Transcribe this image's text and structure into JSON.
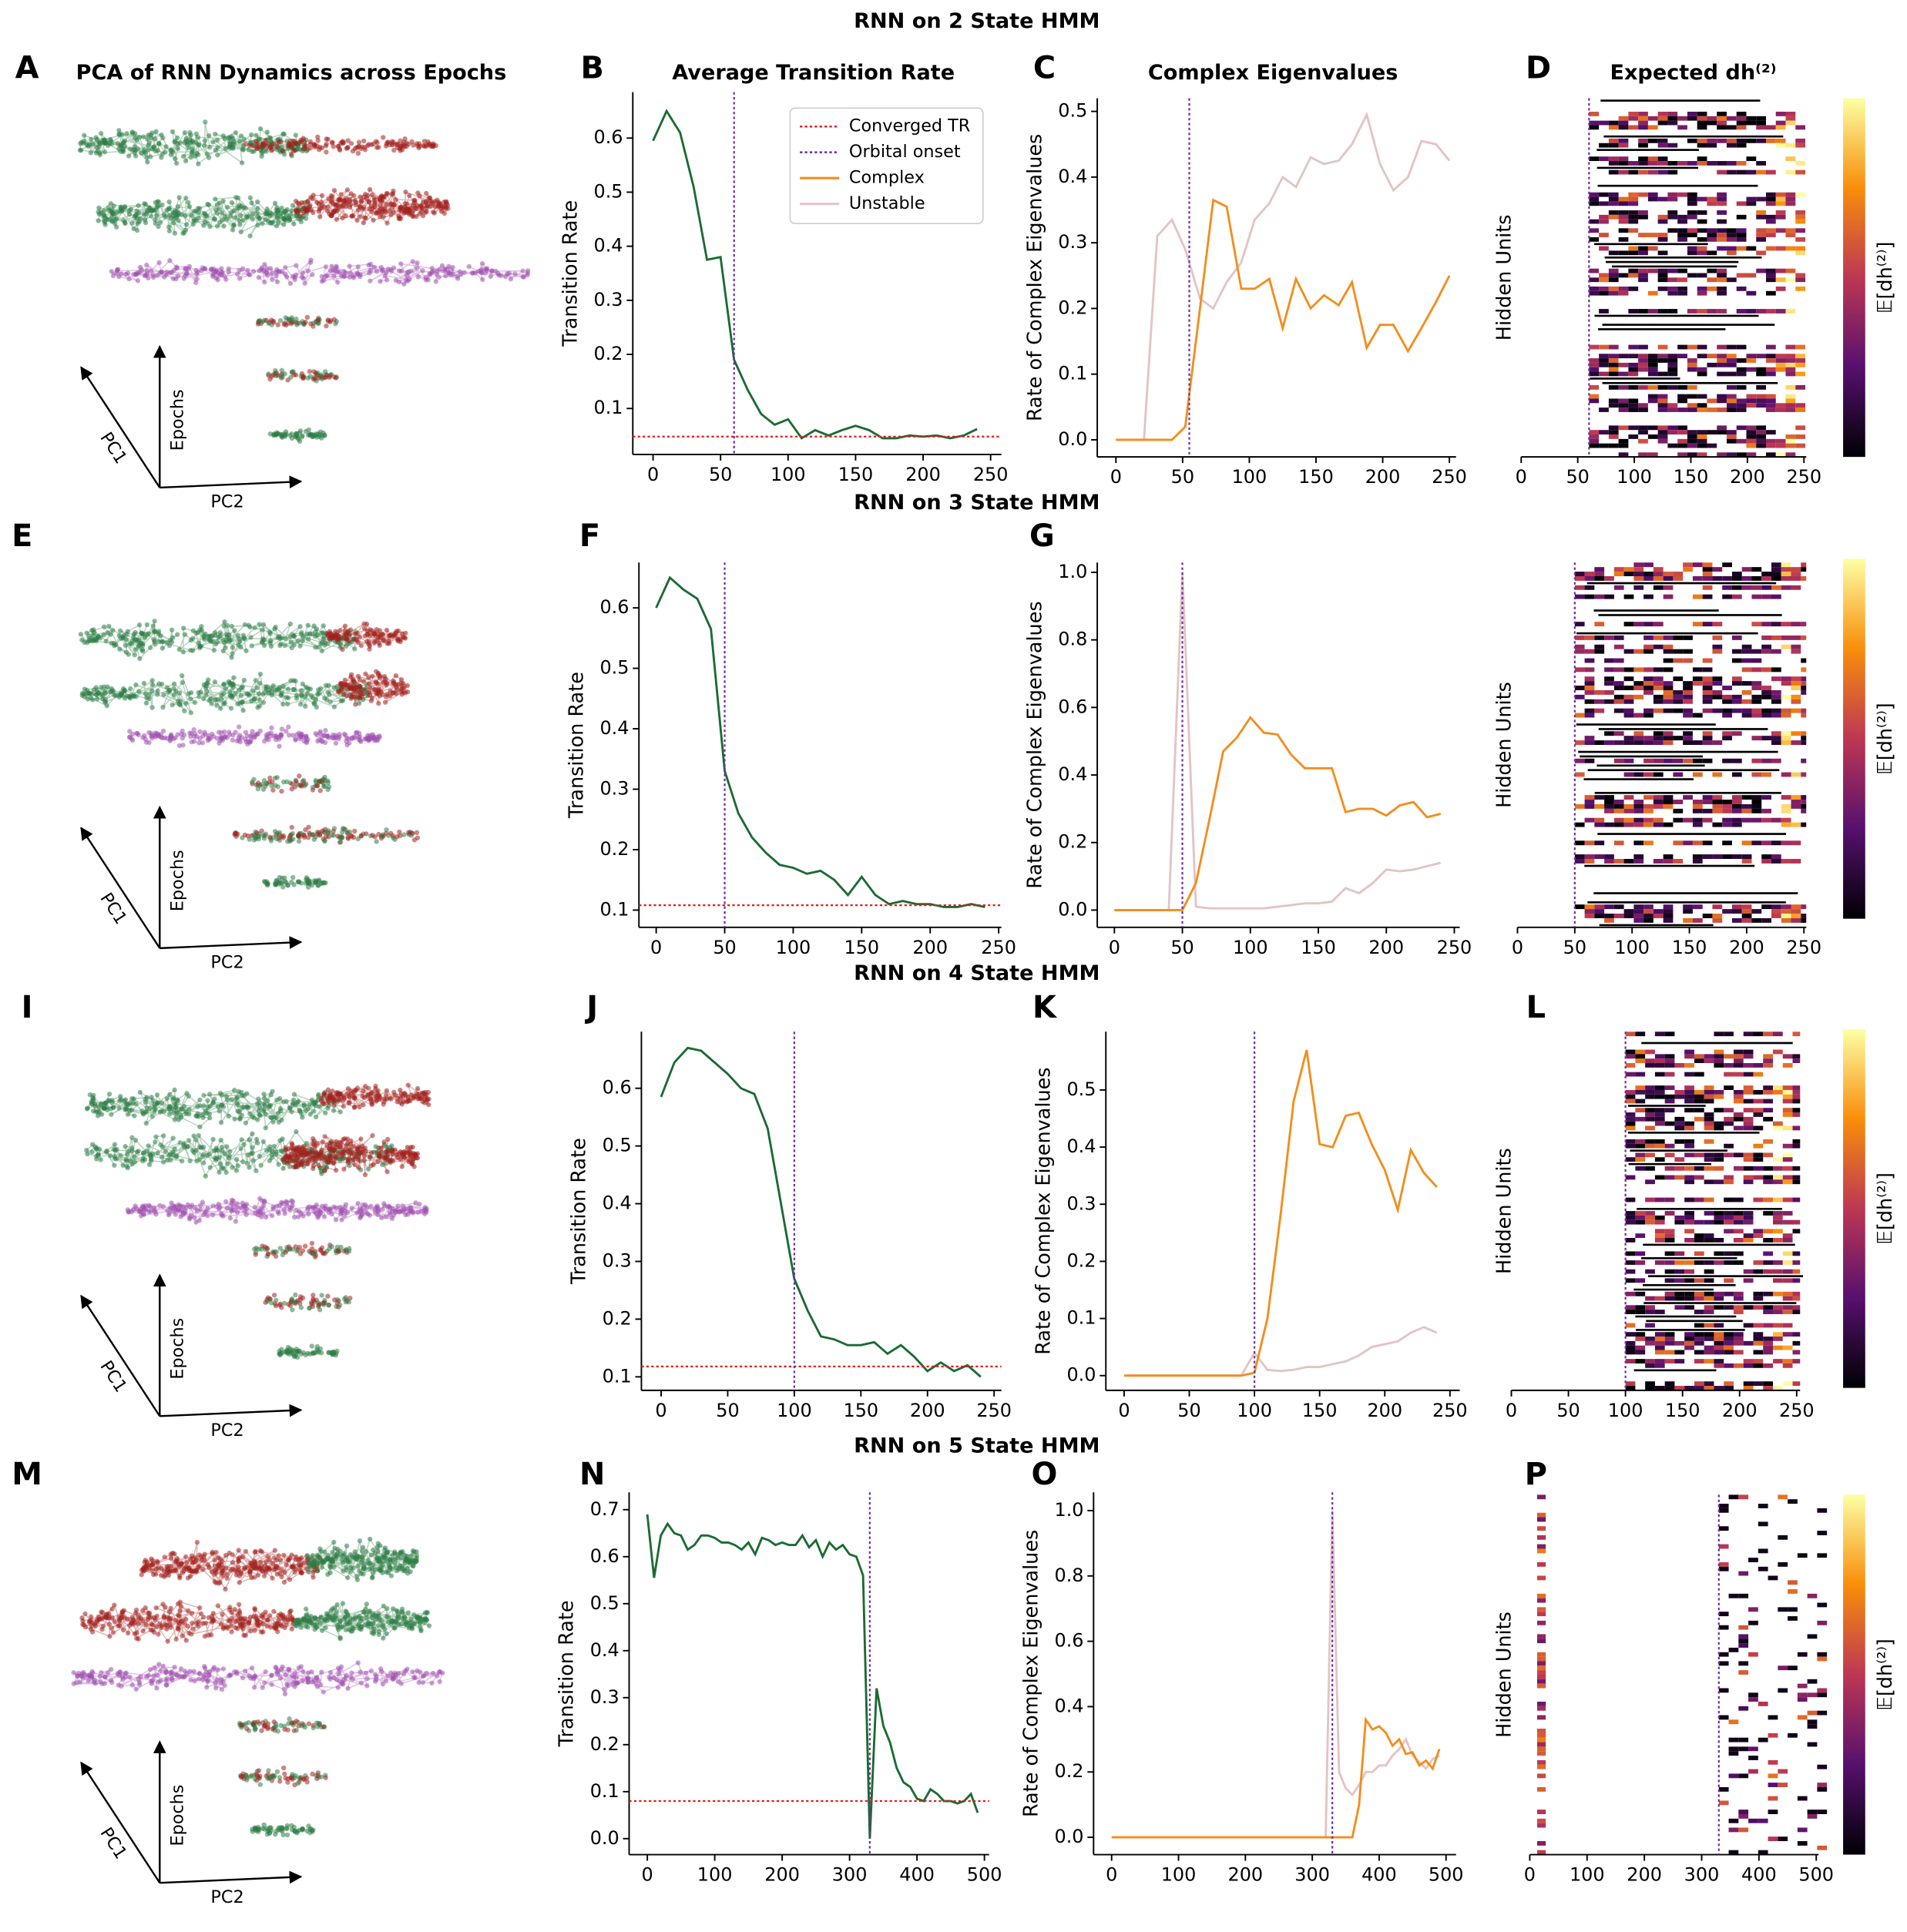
{
  "row_titles": [
    "RNN on 2 State HMM",
    "RNN on 3 State HMM",
    "RNN on 4 State HMM",
    "RNN on 5 State HMM"
  ],
  "chart_data": [
    {
      "type": "pca",
      "label": "A",
      "title": "PCA of RNN Dynamics across Epochs",
      "axis_labels": [
        "PC1",
        "Epochs",
        "PC2"
      ]
    },
    {
      "type": "line",
      "label": "B",
      "title": "Average Transition Rate",
      "ylabel": "Transition Rate",
      "xlim": [
        -15,
        258
      ],
      "ylim": [
        0.015,
        0.685
      ],
      "xticks": [
        0,
        50,
        100,
        150,
        200,
        250
      ],
      "yticks": [
        0.1,
        0.2,
        0.3,
        0.4,
        0.5,
        0.6
      ],
      "x": [
        0,
        10,
        20,
        30,
        40,
        50,
        60,
        70,
        80,
        90,
        100,
        110,
        120,
        130,
        140,
        150,
        160,
        170,
        180,
        190,
        200,
        210,
        220,
        230,
        240
      ],
      "series": [
        {
          "color": "#1b6b32",
          "values": [
            0.595,
            0.65,
            0.61,
            0.51,
            0.375,
            0.38,
            0.19,
            0.135,
            0.09,
            0.07,
            0.08,
            0.045,
            0.06,
            0.05,
            0.06,
            0.068,
            0.06,
            0.045,
            0.045,
            0.05,
            0.048,
            0.05,
            0.045,
            0.05,
            0.062
          ]
        }
      ],
      "hline": {
        "value": 0.048,
        "color": "#e8191c"
      },
      "vline": {
        "value": 60,
        "color": "#7030a0"
      },
      "legend": [
        {
          "name": "Converged TR",
          "color": "#e8191c",
          "style": "dotted"
        },
        {
          "name": "Orbital onset",
          "color": "#7030a0",
          "style": "dotted"
        },
        {
          "name": "Complex",
          "color": "#f28e1c",
          "style": "solid"
        },
        {
          "name": "Unstable",
          "color": "#e3c3c6",
          "style": "solid"
        }
      ]
    },
    {
      "type": "line",
      "label": "C",
      "title": "Complex Eigenvalues",
      "ylabel": "Rate of Complex Eigenvalues",
      "xlim": [
        -14,
        255
      ],
      "ylim": [
        -0.026,
        0.52
      ],
      "xticks": [
        0,
        50,
        100,
        150,
        200,
        250
      ],
      "yticks": [
        {
          "value": 0,
          "label": "0.0"
        },
        0.1,
        0.2,
        0.3,
        0.4,
        0.5
      ],
      "x": [
        0,
        10,
        21,
        31,
        42,
        52,
        63,
        73,
        83,
        94,
        104,
        115,
        125,
        135,
        146,
        156,
        167,
        177,
        188,
        198,
        208,
        219,
        229,
        240,
        250
      ],
      "series": [
        {
          "color": "#e3c3c6",
          "values": [
            0,
            0,
            0,
            0.31,
            0.335,
            0.29,
            0.215,
            0.2,
            0.24,
            0.27,
            0.335,
            0.36,
            0.4,
            0.385,
            0.43,
            0.42,
            0.425,
            0.45,
            0.495,
            0.42,
            0.38,
            0.4,
            0.455,
            0.45,
            0.425
          ]
        },
        {
          "color": "#f28e1c",
          "values": [
            0,
            0,
            0,
            0,
            0,
            0.02,
            0.2,
            0.365,
            0.355,
            0.23,
            0.23,
            0.245,
            0.17,
            0.245,
            0.2,
            0.22,
            0.205,
            0.24,
            0.14,
            0.175,
            0.175,
            0.135,
            0.17,
            0.21,
            0.25
          ]
        }
      ],
      "vline": {
        "value": 55,
        "color": "#7030a0"
      }
    },
    {
      "type": "heatmap",
      "label": "D",
      "title": "Expected dh⁽²⁾",
      "ylabel": "Hidden Units",
      "colorbar_label": "𝔼[dh⁽²⁾]",
      "colormap": "inferno",
      "xlim": [
        0,
        252
      ],
      "xticks": [
        0,
        50,
        100,
        150,
        200,
        250
      ],
      "orbital_onset": 60,
      "onset_color": "#7030a0"
    },
    {
      "type": "pca",
      "label": "E",
      "axis_labels": [
        "PC1",
        "Epochs",
        "PC2"
      ]
    },
    {
      "type": "line",
      "label": "F",
      "ylabel": "Transition Rate",
      "xlim": [
        -12.6,
        252
      ],
      "ylim": [
        0.0715,
        0.675
      ],
      "xticks": [
        0,
        50,
        100,
        150,
        200,
        250
      ],
      "yticks": [
        0.1,
        0.2,
        0.3,
        0.4,
        0.5,
        0.6
      ],
      "x": [
        0,
        10,
        20,
        30,
        40,
        50,
        60,
        70,
        80,
        90,
        100,
        110,
        120,
        130,
        140,
        150,
        160,
        170,
        180,
        190,
        200,
        210,
        220,
        230,
        240
      ],
      "series": [
        {
          "color": "#1b6b32",
          "values": [
            0.6,
            0.65,
            0.63,
            0.615,
            0.565,
            0.33,
            0.26,
            0.22,
            0.195,
            0.175,
            0.17,
            0.16,
            0.165,
            0.15,
            0.125,
            0.155,
            0.125,
            0.11,
            0.115,
            0.11,
            0.11,
            0.105,
            0.105,
            0.11,
            0.105
          ]
        }
      ],
      "hline": {
        "value": 0.108,
        "color": "#e8191c"
      },
      "vline": {
        "value": 50,
        "color": "#7030a0"
      }
    },
    {
      "type": "line",
      "label": "G",
      "ylabel": "Rate of Complex Eigenvalues",
      "xlim": [
        -12.6,
        254
      ],
      "ylim": [
        -0.051,
        1.029
      ],
      "xticks": [
        0,
        50,
        100,
        150,
        200,
        250
      ],
      "yticks": [
        {
          "value": 0,
          "label": "0.0"
        },
        0.2,
        0.4,
        0.6,
        0.8,
        {
          "value": 1,
          "label": "1.0"
        }
      ],
      "x": [
        0,
        10,
        20,
        30,
        40,
        50,
        60,
        70,
        80,
        90,
        100,
        110,
        120,
        130,
        140,
        150,
        160,
        170,
        180,
        190,
        200,
        210,
        220,
        230,
        240
      ],
      "series": [
        {
          "color": "#e3c3c6",
          "values": [
            0,
            0,
            0,
            0,
            0,
            1.0,
            0.01,
            0.005,
            0.005,
            0.005,
            0.005,
            0.005,
            0.01,
            0.015,
            0.02,
            0.02,
            0.025,
            0.065,
            0.05,
            0.08,
            0.12,
            0.115,
            0.12,
            0.13,
            0.14
          ]
        },
        {
          "color": "#f28e1c",
          "values": [
            0,
            0,
            0,
            0,
            0,
            0,
            0.08,
            0.27,
            0.47,
            0.51,
            0.57,
            0.525,
            0.52,
            0.46,
            0.42,
            0.42,
            0.42,
            0.29,
            0.3,
            0.3,
            0.28,
            0.31,
            0.32,
            0.275,
            0.285
          ]
        }
      ],
      "vline": {
        "value": 50,
        "color": "#7030a0"
      }
    },
    {
      "type": "heatmap",
      "ylabel": "Hidden Units",
      "colorbar_label": "𝔼[dh⁽²⁾]",
      "colormap": "inferno",
      "xlim": [
        0,
        252
      ],
      "xticks": [
        0,
        50,
        100,
        150,
        200,
        250
      ],
      "orbital_onset": 50,
      "onset_color": "#7030a0"
    },
    {
      "type": "pca",
      "label": "I",
      "axis_labels": [
        "PC1",
        "Epochs",
        "PC2"
      ]
    },
    {
      "type": "line",
      "label": "J",
      "ylabel": "Transition Rate",
      "xlim": [
        -14.8,
        255.5
      ],
      "ylim": [
        0.0766,
        0.698
      ],
      "xticks": [
        0,
        50,
        100,
        150,
        200,
        250
      ],
      "yticks": [
        0.1,
        0.2,
        0.3,
        0.4,
        0.5,
        0.6
      ],
      "x": [
        0,
        10,
        20,
        30,
        40,
        50,
        60,
        70,
        80,
        90,
        100,
        110,
        120,
        130,
        140,
        150,
        160,
        170,
        180,
        190,
        200,
        210,
        220,
        230,
        240
      ],
      "series": [
        {
          "color": "#1b6b32",
          "values": [
            0.585,
            0.645,
            0.67,
            0.665,
            0.645,
            0.625,
            0.6,
            0.59,
            0.53,
            0.4,
            0.27,
            0.215,
            0.17,
            0.165,
            0.155,
            0.155,
            0.16,
            0.14,
            0.155,
            0.135,
            0.11,
            0.125,
            0.11,
            0.12,
            0.1
          ]
        }
      ],
      "hline": {
        "value": 0.118,
        "color": "#e8191c"
      },
      "vline": {
        "value": 100,
        "color": "#7030a0"
      }
    },
    {
      "type": "line",
      "label": "K",
      "ylabel": "Rate of Complex Eigenvalues",
      "xlim": [
        -14,
        257.5
      ],
      "ylim": [
        -0.0258,
        0.602
      ],
      "xticks": [
        0,
        50,
        100,
        150,
        200,
        250
      ],
      "yticks": [
        {
          "value": 0,
          "label": "0.0"
        },
        0.1,
        0.2,
        0.3,
        0.4,
        0.5
      ],
      "x": [
        0,
        10,
        20,
        30,
        40,
        50,
        60,
        70,
        80,
        90,
        100,
        110,
        120,
        130,
        140,
        150,
        160,
        170,
        180,
        190,
        200,
        210,
        220,
        230,
        240
      ],
      "series": [
        {
          "color": "#e3c3c6",
          "values": [
            0,
            0,
            0,
            0,
            0,
            0,
            0,
            0,
            0,
            0,
            0.04,
            0.01,
            0.008,
            0.01,
            0.015,
            0.015,
            0.02,
            0.025,
            0.035,
            0.05,
            0.055,
            0.06,
            0.075,
            0.085,
            0.075
          ]
        },
        {
          "color": "#f28e1c",
          "values": [
            0,
            0,
            0,
            0,
            0,
            0,
            0,
            0,
            0,
            0,
            0.005,
            0.1,
            0.28,
            0.48,
            0.57,
            0.405,
            0.4,
            0.455,
            0.46,
            0.405,
            0.36,
            0.29,
            0.395,
            0.355,
            0.33
          ]
        }
      ],
      "vline": {
        "value": 100,
        "color": "#7030a0"
      }
    },
    {
      "type": "heatmap",
      "label": "L",
      "ylabel": "Hidden Units",
      "colorbar_label": "𝔼[dh⁽²⁾]",
      "colormap": "inferno",
      "xlim": [
        0,
        253
      ],
      "xticks": [
        0,
        50,
        100,
        150,
        200,
        250
      ],
      "orbital_onset": 100,
      "onset_color": "#7030a0"
    },
    {
      "type": "pca",
      "label": "M",
      "axis_labels": [
        "PC1",
        "Epochs",
        "PC2"
      ]
    },
    {
      "type": "line",
      "label": "N",
      "ylabel": "Transition Rate",
      "xlim": [
        -27,
        507
      ],
      "ylim": [
        -0.034,
        0.737
      ],
      "xticks": [
        0,
        100,
        200,
        300,
        400,
        500
      ],
      "yticks": [
        {
          "value": 0,
          "label": "0.0"
        },
        0.1,
        0.2,
        0.3,
        0.4,
        0.5,
        0.6,
        0.7
      ],
      "x": [
        0,
        10,
        20,
        30,
        40,
        50,
        60,
        70,
        80,
        90,
        100,
        110,
        120,
        130,
        140,
        150,
        160,
        170,
        180,
        190,
        200,
        210,
        220,
        230,
        240,
        250,
        260,
        270,
        280,
        290,
        300,
        310,
        320,
        330,
        340,
        350,
        360,
        370,
        380,
        390,
        400,
        410,
        420,
        430,
        440,
        450,
        460,
        470,
        480,
        490
      ],
      "series": [
        {
          "color": "#1b6b32",
          "values": [
            0.69,
            0.555,
            0.645,
            0.67,
            0.65,
            0.645,
            0.615,
            0.625,
            0.645,
            0.645,
            0.64,
            0.63,
            0.63,
            0.625,
            0.615,
            0.63,
            0.605,
            0.64,
            0.635,
            0.625,
            0.63,
            0.625,
            0.625,
            0.645,
            0.62,
            0.635,
            0.6,
            0.63,
            0.615,
            0.625,
            0.605,
            0.6,
            0.56,
            0.0,
            0.32,
            0.24,
            0.205,
            0.15,
            0.12,
            0.11,
            0.085,
            0.08,
            0.105,
            0.095,
            0.08,
            0.08,
            0.075,
            0.08,
            0.095,
            0.055
          ]
        }
      ],
      "hline": {
        "value": 0.08,
        "color": "#e8191c"
      },
      "vline": {
        "value": 330,
        "color": "#7030a0"
      }
    },
    {
      "type": "line",
      "label": "O",
      "ylabel": "Rate of Complex Eigenvalues",
      "xlim": [
        -27,
        515
      ],
      "ylim": [
        -0.053,
        1.056
      ],
      "xticks": [
        0,
        100,
        200,
        300,
        400,
        500
      ],
      "yticks": [
        {
          "value": 0,
          "label": "0.0"
        },
        0.2,
        0.4,
        0.6,
        0.8,
        {
          "value": 1,
          "label": "1.0"
        }
      ],
      "series": [
        {
          "color": "#e3c3c6",
          "x": [
            0,
            320,
            330,
            340,
            350,
            360,
            370,
            380,
            390,
            400,
            410,
            420,
            430,
            440,
            450,
            460,
            470,
            480,
            490
          ],
          "values": [
            0,
            0,
            1.0,
            0.2,
            0.15,
            0.13,
            0.16,
            0.2,
            0.2,
            0.22,
            0.22,
            0.25,
            0.27,
            0.3,
            0.25,
            0.23,
            0.21,
            0.24,
            0.25
          ]
        },
        {
          "color": "#f28e1c",
          "x": [
            0,
            360,
            370,
            380,
            390,
            400,
            410,
            420,
            430,
            440,
            450,
            460,
            470,
            480,
            490
          ],
          "values": [
            0,
            0,
            0.1,
            0.36,
            0.33,
            0.34,
            0.32,
            0.28,
            0.3,
            0.255,
            0.26,
            0.22,
            0.235,
            0.21,
            0.27
          ]
        }
      ],
      "vline": {
        "value": 330,
        "color": "#7030a0"
      }
    },
    {
      "type": "heatmap",
      "label": "P",
      "ylabel": "Hidden Units",
      "colorbar_label": "𝔼[dh⁽²⁾]",
      "colormap": "inferno",
      "xlim": [
        0,
        504
      ],
      "xticks": [
        0,
        100,
        200,
        300,
        400,
        500
      ],
      "orbital_onset": 330,
      "onset_color": "#7030a0"
    }
  ]
}
